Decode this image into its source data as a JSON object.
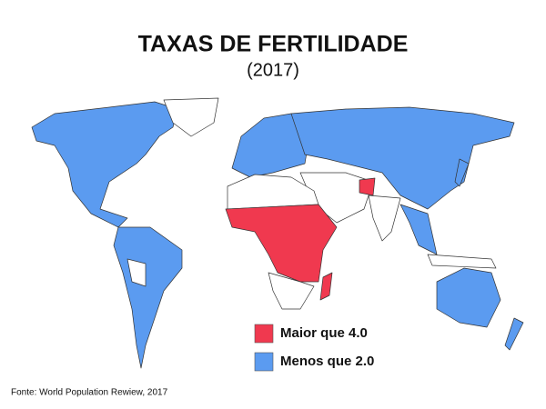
{
  "title": "TAXAS DE FERTILIDADE",
  "subtitle": "(2017)",
  "legend": [
    {
      "label": "Maior que 4.0",
      "color": "#f0394f"
    },
    {
      "label": "Menos que 2.0",
      "color": "#5b9bf0"
    }
  ],
  "source": "Fonte: World Population Rewiew, 2017"
}
